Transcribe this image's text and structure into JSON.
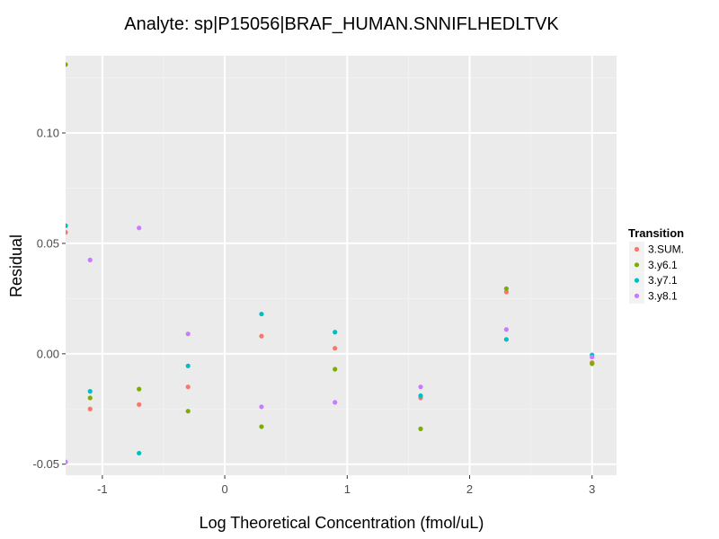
{
  "chart_data": {
    "type": "scatter",
    "title": "Analyte: sp|P15056|BRAF_HUMAN.SNNIFLHEDLTVK",
    "xlabel": "Log Theoretical Concentration (fmol/uL)",
    "ylabel": "Residual",
    "xlim": [
      -1.3,
      3.2
    ],
    "ylim": [
      -0.055,
      0.135
    ],
    "xticks": [
      -1,
      0,
      1,
      2,
      3
    ],
    "xtick_labels": [
      "-1",
      "0",
      "1",
      "2",
      "3"
    ],
    "yticks": [
      -0.05,
      0.0,
      0.05,
      0.1
    ],
    "ytick_labels": [
      "-0.05",
      "0.00",
      "0.05",
      "0.10"
    ],
    "grid": true,
    "legend": {
      "title": "Transition",
      "position": "right"
    },
    "series": [
      {
        "name": "3.SUM.",
        "color": "#F8766D",
        "points": [
          [
            -1.3,
            0.055
          ],
          [
            -1.1,
            -0.025
          ],
          [
            -0.7,
            -0.023
          ],
          [
            -0.3,
            -0.015
          ],
          [
            0.3,
            0.008
          ],
          [
            0.9,
            0.0025
          ],
          [
            1.6,
            -0.02
          ],
          [
            2.3,
            0.028
          ],
          [
            3.0,
            -0.004
          ]
        ]
      },
      {
        "name": "3.y6.1",
        "color": "#7CAE00",
        "points": [
          [
            -1.3,
            0.131
          ],
          [
            -1.1,
            -0.02
          ],
          [
            -0.7,
            -0.016
          ],
          [
            -0.3,
            -0.026
          ],
          [
            0.3,
            -0.033
          ],
          [
            0.9,
            -0.007
          ],
          [
            1.6,
            -0.034
          ],
          [
            2.3,
            0.0295
          ],
          [
            3.0,
            -0.0045
          ]
        ]
      },
      {
        "name": "3.y7.1",
        "color": "#00BFC4",
        "points": [
          [
            -1.3,
            0.058
          ],
          [
            -1.1,
            -0.017
          ],
          [
            -0.7,
            -0.045
          ],
          [
            -0.3,
            -0.0055
          ],
          [
            0.3,
            0.018
          ],
          [
            0.9,
            0.0098
          ],
          [
            1.6,
            -0.019
          ],
          [
            2.3,
            0.0065
          ],
          [
            3.0,
            -0.0005
          ]
        ]
      },
      {
        "name": "3.y8.1",
        "color": "#C77CFF",
        "points": [
          [
            -1.3,
            -0.049
          ],
          [
            -1.1,
            0.0425
          ],
          [
            -0.7,
            0.057
          ],
          [
            -0.3,
            0.009
          ],
          [
            0.3,
            -0.024
          ],
          [
            0.9,
            -0.022
          ],
          [
            1.6,
            -0.015
          ],
          [
            2.3,
            0.011
          ],
          [
            3.0,
            -0.0015
          ]
        ]
      }
    ]
  }
}
